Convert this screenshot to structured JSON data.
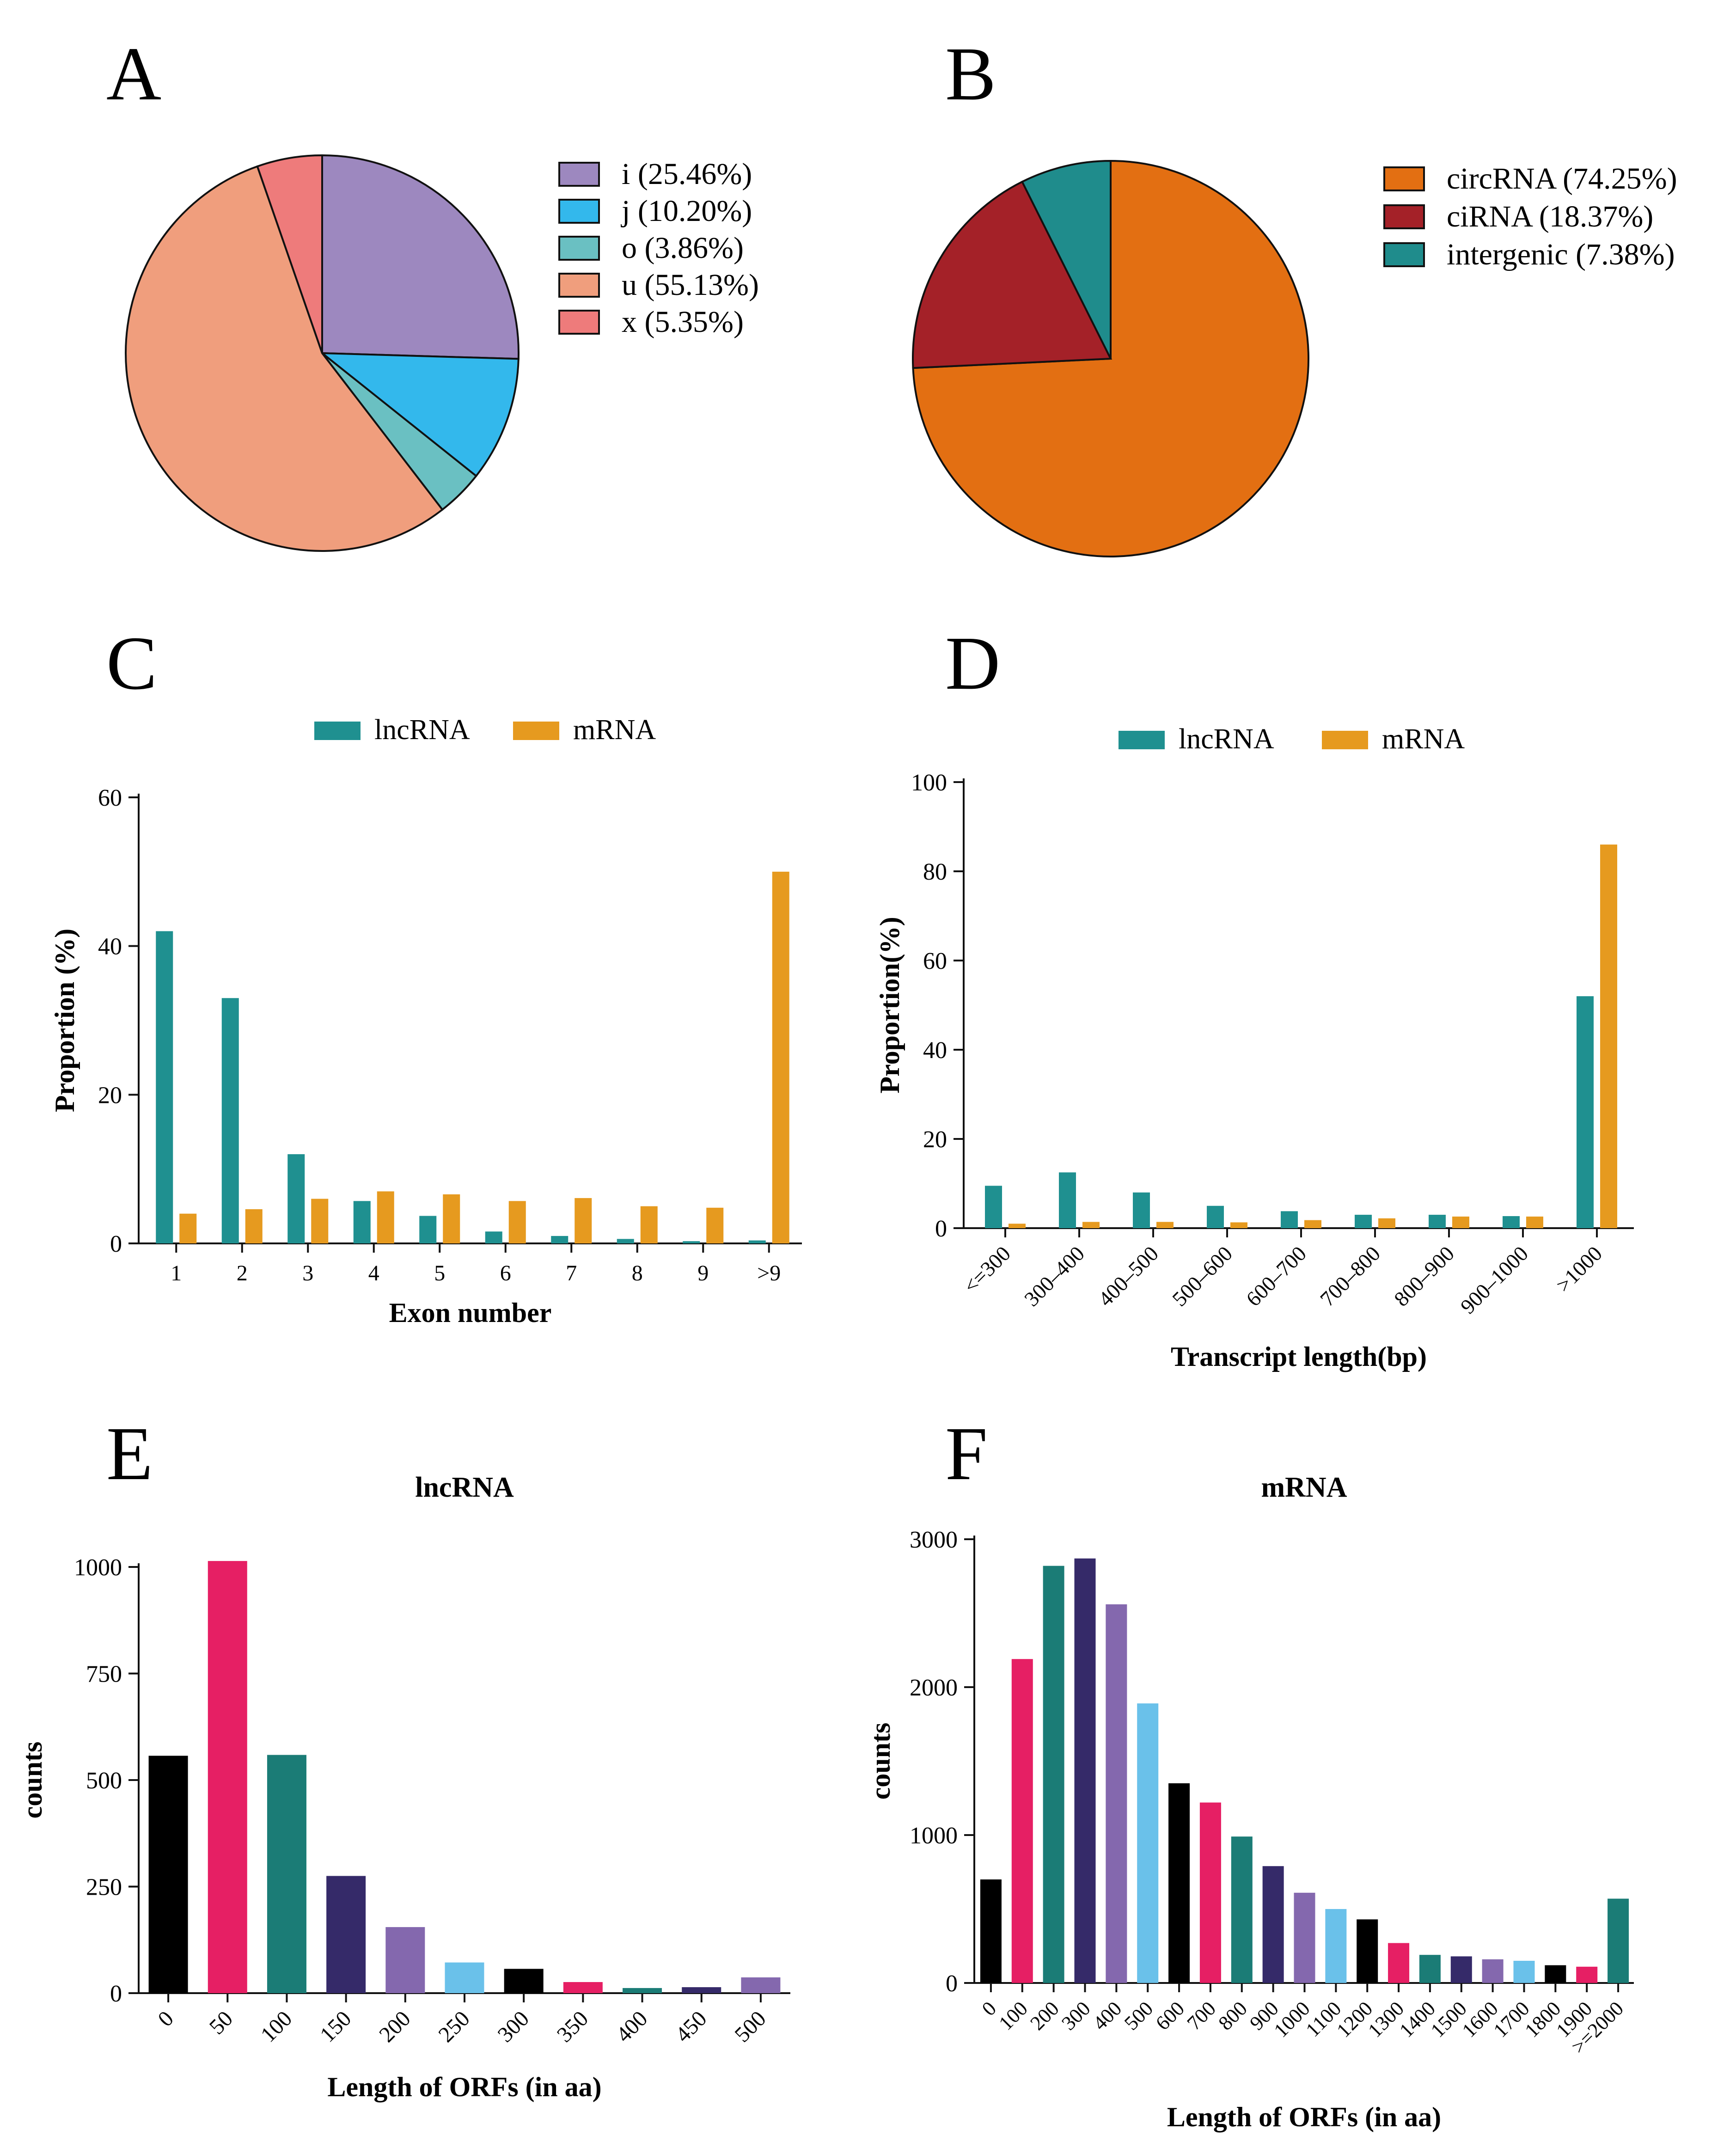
{
  "panel_labels": {
    "a": "A",
    "b": "B",
    "c": "C",
    "d": "D",
    "e": "E",
    "f": "F"
  },
  "colors": {
    "teal": "#1f9090",
    "orange_bar": "#e69a1f",
    "black": "#000000",
    "pink": "#e61f64",
    "dark_teal": "#1b7c76",
    "navy": "#352a69",
    "purple": "#8468ae",
    "sky": "#6ac1ea",
    "i": "#9d88bf",
    "j": "#33b8ec",
    "o": "#6ac0c2",
    "u": "#f09e7d",
    "x": "#ee7b7b",
    "circRNA": "#e36f12",
    "ciRNA": "#a42128",
    "intergenic": "#1f8c8c"
  },
  "chart_data": [
    {
      "id": "A",
      "type": "pie",
      "title": "",
      "categories": [
        "i",
        "j",
        "o",
        "u",
        "x"
      ],
      "values": [
        25.46,
        10.2,
        3.86,
        55.13,
        5.35
      ],
      "legend": [
        "i (25.46%)",
        "j (10.20%)",
        "o (3.86%)",
        "u (55.13%)",
        "x (5.35%)"
      ],
      "legend_position": "right"
    },
    {
      "id": "B",
      "type": "pie",
      "title": "",
      "categories": [
        "circRNA",
        "ciRNA",
        "intergenic"
      ],
      "values": [
        74.25,
        18.37,
        7.38
      ],
      "legend": [
        "circRNA (74.25%)",
        "ciRNA (18.37%)",
        "intergenic (7.38%)"
      ],
      "legend_position": "right"
    },
    {
      "id": "C",
      "type": "bar",
      "title": "",
      "xlabel": "Exon number",
      "ylabel": "Proportion (%)",
      "categories": [
        "1",
        "2",
        "3",
        "4",
        "5",
        "6",
        "7",
        "8",
        "9",
        ">9"
      ],
      "series": [
        {
          "name": "lncRNA",
          "values": [
            42,
            33,
            12,
            5.7,
            3.7,
            1.6,
            1.0,
            0.6,
            0.3,
            0.4
          ]
        },
        {
          "name": "mRNA",
          "values": [
            4.0,
            4.6,
            6.0,
            7.0,
            6.6,
            5.7,
            6.1,
            5.0,
            4.8,
            50
          ]
        }
      ],
      "ylim": [
        0,
        60
      ],
      "yticks": [
        "0",
        "20",
        "40",
        "60"
      ],
      "legend_position": "top"
    },
    {
      "id": "D",
      "type": "bar",
      "title": "",
      "xlabel": "Transcript length(bp)",
      "ylabel": "Proportion(%)",
      "categories": [
        "<=300",
        "300–400",
        "400–500",
        "500–600",
        "600–700",
        "700–800",
        "800–900",
        "900–1000",
        ">1000"
      ],
      "series": [
        {
          "name": "lncRNA",
          "values": [
            9.5,
            12.5,
            8.0,
            5.0,
            3.8,
            3.0,
            3.0,
            2.7,
            52
          ]
        },
        {
          "name": "mRNA",
          "values": [
            1.0,
            1.4,
            1.4,
            1.3,
            1.8,
            2.2,
            2.6,
            2.6,
            86
          ]
        }
      ],
      "ylim": [
        0,
        100
      ],
      "yticks": [
        "0",
        "20",
        "40",
        "60",
        "80",
        "100"
      ],
      "legend_position": "top"
    },
    {
      "id": "E",
      "type": "bar",
      "title": "lncRNA",
      "xlabel": "Length of ORFs (in aa)",
      "ylabel": "counts",
      "categories": [
        "0",
        "50",
        "100",
        "150",
        "200",
        "250",
        "300",
        "350",
        "400",
        "450",
        "500"
      ],
      "values": [
        557,
        1014,
        559,
        275,
        155,
        72,
        57,
        26,
        12,
        14,
        37
      ],
      "bar_colors": [
        "black",
        "pink",
        "dark_teal",
        "navy",
        "purple",
        "sky",
        "black",
        "pink",
        "dark_teal",
        "navy",
        "purple"
      ],
      "ylim": [
        0,
        1000
      ],
      "yticks": [
        "0",
        "250",
        "500",
        "750",
        "1000"
      ]
    },
    {
      "id": "F",
      "type": "bar",
      "title": "mRNA",
      "xlabel": "Length of ORFs (in aa)",
      "ylabel": "counts",
      "categories": [
        "0",
        "100",
        "200",
        "300",
        "400",
        "500",
        "600",
        "700",
        "800",
        "900",
        "1000",
        "1100",
        "1200",
        "1300",
        "1400",
        "1500",
        "1600",
        "1700",
        "1800",
        "1900",
        ">=2000"
      ],
      "values": [
        700,
        2190,
        2820,
        2870,
        2560,
        1890,
        1350,
        1220,
        990,
        790,
        610,
        500,
        430,
        270,
        190,
        180,
        160,
        150,
        120,
        110,
        570
      ],
      "bar_colors": [
        "black",
        "pink",
        "dark_teal",
        "navy",
        "purple",
        "sky",
        "black",
        "pink",
        "dark_teal",
        "navy",
        "purple",
        "sky",
        "black",
        "pink",
        "dark_teal",
        "navy",
        "purple",
        "sky",
        "black",
        "pink",
        "dark_teal"
      ],
      "ylim": [
        0,
        3000
      ],
      "yticks": [
        "0",
        "1000",
        "2000",
        "3000"
      ]
    }
  ]
}
